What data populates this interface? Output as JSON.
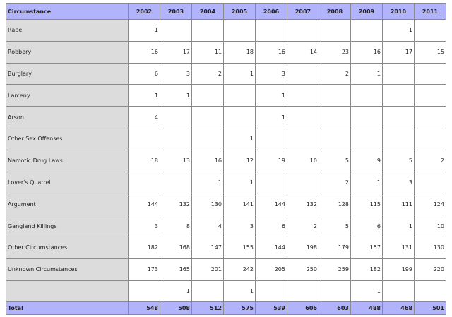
{
  "header": {
    "label": "Circumstance",
    "years": [
      "2002",
      "2003",
      "2004",
      "2005",
      "2006",
      "2007",
      "2008",
      "2009",
      "2010",
      "2011"
    ]
  },
  "rows": [
    {
      "label": "Rape",
      "values": [
        "1",
        "",
        "",
        "",
        "",
        "",
        "",
        "",
        "1",
        ""
      ]
    },
    {
      "label": "Robbery",
      "values": [
        "16",
        "17",
        "11",
        "18",
        "16",
        "14",
        "23",
        "16",
        "17",
        "15"
      ]
    },
    {
      "label": "Burglary",
      "values": [
        "6",
        "3",
        "2",
        "1",
        "3",
        "",
        "2",
        "1",
        "",
        ""
      ]
    },
    {
      "label": "Larceny",
      "values": [
        "1",
        "1",
        "",
        "",
        "1",
        "",
        "",
        "",
        "",
        ""
      ]
    },
    {
      "label": "Arson",
      "values": [
        "4",
        "",
        "",
        "",
        "1",
        "",
        "",
        "",
        "",
        ""
      ]
    },
    {
      "label": "Other Sex Offenses",
      "values": [
        "",
        "",
        "",
        "1",
        "",
        "",
        "",
        "",
        "",
        ""
      ]
    },
    {
      "label": "Narcotic Drug Laws",
      "values": [
        "18",
        "13",
        "16",
        "12",
        "19",
        "10",
        "5",
        "9",
        "5",
        "2"
      ]
    },
    {
      "label": "Lover's Quarrel",
      "values": [
        "",
        "",
        "1",
        "1",
        "",
        "",
        "2",
        "1",
        "3",
        ""
      ]
    },
    {
      "label": "Argument",
      "values": [
        "144",
        "132",
        "130",
        "141",
        "144",
        "132",
        "128",
        "115",
        "111",
        "124"
      ]
    },
    {
      "label": "Gangland Killings",
      "values": [
        "3",
        "8",
        "4",
        "3",
        "6",
        "2",
        "5",
        "6",
        "1",
        "10"
      ]
    },
    {
      "label": "Other Circumstances",
      "values": [
        "182",
        "168",
        "147",
        "155",
        "144",
        "198",
        "179",
        "157",
        "131",
        "130"
      ]
    },
    {
      "label": "Unknown Circumstances",
      "values": [
        "173",
        "165",
        "201",
        "242",
        "205",
        "250",
        "259",
        "182",
        "199",
        "220"
      ]
    },
    {
      "label": "",
      "values": [
        "",
        "1",
        "",
        "1",
        "",
        "",
        "",
        "1",
        "",
        ""
      ]
    }
  ],
  "total": {
    "label": "Total",
    "values": [
      "548",
      "508",
      "512",
      "575",
      "539",
      "606",
      "603",
      "488",
      "468",
      "501"
    ]
  }
}
